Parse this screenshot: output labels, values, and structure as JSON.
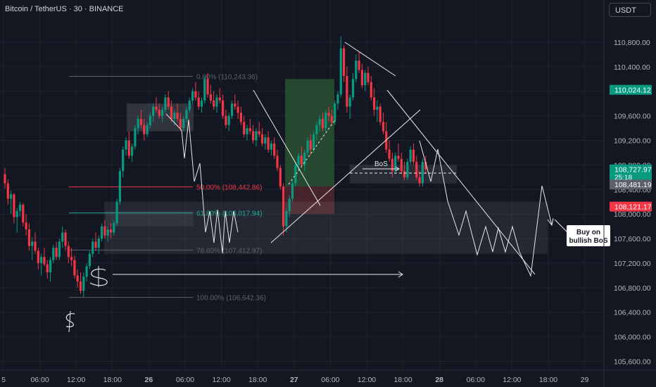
{
  "header": {
    "symbol": "Bitcoin / TetherUS · 30 · BINANCE",
    "currency": "USDT"
  },
  "colors": {
    "up": "#089981",
    "down": "#f23645",
    "bg": "#131722",
    "grid": "#1e222d",
    "axis_text": "#b2b5be",
    "fib": "#5d606b",
    "fib_red": "#f23645",
    "fib_teal": "#22ab94",
    "drawing": "#e8e8e8",
    "long_profit": "#2d5a35",
    "long_loss": "#5a2a30"
  },
  "chart_data": {
    "type": "candlestick",
    "title": "Bitcoin / TetherUS · 30 · BINANCE",
    "y_ticks": [
      "110,800.00",
      "110,400.00",
      "110,000.00",
      "109,600.00",
      "109,200.00",
      "108,800.00",
      "108,400.00",
      "108,000.00",
      "107,600.00",
      "107,200.00",
      "106,800.00",
      "106,400.00",
      "106,000.00",
      "105,600.00"
    ],
    "y_tick_values": [
      110800,
      110400,
      110000,
      109600,
      109200,
      108800,
      108400,
      108000,
      107600,
      107200,
      106800,
      106400,
      106000,
      105600
    ],
    "ylim": [
      105500,
      111300
    ],
    "x_ticks": [
      "5",
      "06:00",
      "12:00",
      "18:00",
      "26",
      "06:00",
      "12:00",
      "18:00",
      "27",
      "06:00",
      "12:00",
      "18:00",
      "28",
      "06:00",
      "12:00",
      "18:00",
      "29"
    ],
    "x_tick_hours": [
      0,
      6,
      12,
      18,
      24,
      30,
      36,
      42,
      48,
      54,
      60,
      66,
      72,
      78,
      84,
      90,
      96
    ],
    "bar_hours": 0.5,
    "ohlc": [
      [
        108650,
        108750,
        108420,
        108500
      ],
      [
        108500,
        108560,
        108150,
        108250
      ],
      [
        108250,
        108380,
        108000,
        108320
      ],
      [
        108320,
        108340,
        107850,
        107950
      ],
      [
        107950,
        108100,
        107700,
        108050
      ],
      [
        108050,
        108200,
        107960,
        108150
      ],
      [
        108150,
        108180,
        107800,
        107860
      ],
      [
        107860,
        108000,
        107650,
        107750
      ],
      [
        107750,
        107850,
        107400,
        107480
      ],
      [
        107480,
        107620,
        107250,
        107550
      ],
      [
        107550,
        107700,
        107350,
        107400
      ],
      [
        107400,
        107450,
        107100,
        107200
      ],
      [
        107200,
        107350,
        107000,
        107300
      ],
      [
        107300,
        107450,
        107150,
        107180
      ],
      [
        107180,
        107250,
        106950,
        107050
      ],
      [
        107050,
        107300,
        106900,
        107250
      ],
      [
        107250,
        107500,
        107200,
        107450
      ],
      [
        107450,
        107550,
        107250,
        107300
      ],
      [
        107300,
        107600,
        107250,
        107550
      ],
      [
        107550,
        107800,
        107450,
        107700
      ],
      [
        107700,
        107750,
        107400,
        107480
      ],
      [
        107480,
        107550,
        107200,
        107300
      ],
      [
        107300,
        107450,
        107150,
        107250
      ],
      [
        107250,
        107320,
        106950,
        107000
      ],
      [
        107000,
        107100,
        106800,
        106900
      ],
      [
        106900,
        107050,
        106700,
        106750
      ],
      [
        106750,
        107050,
        106650,
        106980
      ],
      [
        106980,
        107200,
        106900,
        107150
      ],
      [
        107150,
        107400,
        107100,
        107350
      ],
      [
        107350,
        107600,
        107300,
        107550
      ],
      [
        107550,
        107700,
        107400,
        107450
      ],
      [
        107450,
        107650,
        107350,
        107600
      ],
      [
        107600,
        107850,
        107550,
        107800
      ],
      [
        107800,
        107900,
        107600,
        107650
      ],
      [
        107650,
        107800,
        107550,
        107750
      ],
      [
        107750,
        107850,
        107600,
        107700
      ],
      [
        107700,
        107900,
        107650,
        107850
      ],
      [
        107850,
        108250,
        107800,
        108200
      ],
      [
        108200,
        108750,
        108150,
        108700
      ],
      [
        108700,
        109100,
        108600,
        109050
      ],
      [
        109050,
        109250,
        108950,
        109200
      ],
      [
        109200,
        109350,
        108900,
        108950
      ],
      [
        108950,
        109150,
        108850,
        109100
      ],
      [
        109100,
        109450,
        109050,
        109400
      ],
      [
        109400,
        109600,
        109300,
        109550
      ],
      [
        109550,
        109700,
        109400,
        109450
      ],
      [
        109450,
        109550,
        109200,
        109300
      ],
      [
        109300,
        109500,
        109250,
        109450
      ],
      [
        109450,
        109650,
        109400,
        109600
      ],
      [
        109600,
        109800,
        109500,
        109750
      ],
      [
        109750,
        109900,
        109650,
        109700
      ],
      [
        109700,
        109800,
        109550,
        109600
      ],
      [
        109600,
        109750,
        109500,
        109700
      ],
      [
        109700,
        109950,
        109650,
        109900
      ],
      [
        109900,
        110000,
        109700,
        109750
      ],
      [
        109750,
        109850,
        109500,
        109550
      ],
      [
        109550,
        109700,
        109450,
        109650
      ],
      [
        109650,
        109800,
        109500,
        109550
      ],
      [
        109550,
        109650,
        109350,
        109400
      ],
      [
        109400,
        109600,
        109350,
        109550
      ],
      [
        109550,
        109750,
        109500,
        109700
      ],
      [
        109700,
        109900,
        109650,
        109850
      ],
      [
        109850,
        110050,
        109800,
        110000
      ],
      [
        110000,
        110150,
        109850,
        109900
      ],
      [
        109900,
        110000,
        109700,
        109750
      ],
      [
        109750,
        109900,
        109650,
        109850
      ],
      [
        109850,
        110250,
        109800,
        110200
      ],
      [
        110200,
        110300,
        109900,
        109950
      ],
      [
        109950,
        110100,
        109800,
        109850
      ],
      [
        109850,
        110000,
        109700,
        109750
      ],
      [
        109750,
        109950,
        109650,
        109900
      ],
      [
        109900,
        110050,
        109800,
        109850
      ],
      [
        109850,
        109950,
        109550,
        109600
      ],
      [
        109600,
        109700,
        109400,
        109450
      ],
      [
        109450,
        109650,
        109350,
        109600
      ],
      [
        109600,
        109850,
        109550,
        109800
      ],
      [
        109800,
        109950,
        109700,
        109750
      ],
      [
        109750,
        109850,
        109550,
        109650
      ],
      [
        109650,
        109750,
        109450,
        109500
      ],
      [
        109500,
        109600,
        109250,
        109300
      ],
      [
        109300,
        109450,
        109200,
        109400
      ],
      [
        109400,
        109550,
        109300,
        109350
      ],
      [
        109350,
        109450,
        109150,
        109200
      ],
      [
        109200,
        109400,
        109100,
        109350
      ],
      [
        109350,
        109500,
        109250,
        109300
      ],
      [
        109300,
        109400,
        109100,
        109150
      ],
      [
        109150,
        109300,
        109050,
        109250
      ],
      [
        109250,
        109350,
        109000,
        109050
      ],
      [
        109050,
        109200,
        108950,
        109150
      ],
      [
        109150,
        109250,
        108900,
        108950
      ],
      [
        108950,
        109050,
        108700,
        108750
      ],
      [
        108750,
        108800,
        108400,
        108450
      ],
      [
        108450,
        108500,
        107650,
        107800
      ],
      [
        107800,
        108100,
        107700,
        108050
      ],
      [
        108050,
        108300,
        107950,
        108250
      ],
      [
        108250,
        108550,
        108200,
        108500
      ],
      [
        108500,
        108850,
        108450,
        108800
      ],
      [
        108800,
        109000,
        108700,
        108950
      ],
      [
        108950,
        109100,
        108750,
        108800
      ],
      [
        108800,
        109050,
        108700,
        109000
      ],
      [
        109000,
        109250,
        108950,
        109200
      ],
      [
        109200,
        109300,
        108950,
        109050
      ],
      [
        109050,
        109350,
        109000,
        109300
      ],
      [
        109300,
        109500,
        109200,
        109450
      ],
      [
        109450,
        109600,
        109350,
        109550
      ],
      [
        109550,
        109650,
        109350,
        109400
      ],
      [
        109400,
        109700,
        109350,
        109650
      ],
      [
        109650,
        109750,
        109500,
        109600
      ],
      [
        109600,
        109700,
        109450,
        109500
      ],
      [
        109500,
        109850,
        109450,
        109800
      ],
      [
        109800,
        110000,
        109700,
        109950
      ],
      [
        109950,
        110900,
        109900,
        110700
      ],
      [
        110700,
        110750,
        110150,
        110250
      ],
      [
        110250,
        110400,
        109650,
        109750
      ],
      [
        109750,
        109950,
        109550,
        109900
      ],
      [
        109900,
        110300,
        109850,
        110200
      ],
      [
        110200,
        110600,
        110150,
        110500
      ],
      [
        110500,
        110650,
        110300,
        110350
      ],
      [
        110350,
        110450,
        110050,
        110100
      ],
      [
        110100,
        110350,
        110000,
        110300
      ],
      [
        110300,
        110400,
        110100,
        110150
      ],
      [
        110150,
        110250,
        109850,
        109900
      ],
      [
        109900,
        110050,
        109600,
        109700
      ],
      [
        109700,
        109850,
        109500,
        109750
      ],
      [
        109750,
        109800,
        109450,
        109500
      ],
      [
        109500,
        109650,
        109300,
        109350
      ],
      [
        109350,
        109500,
        109000,
        109050
      ],
      [
        109050,
        109200,
        108850,
        108900
      ],
      [
        108900,
        109000,
        108600,
        108700
      ],
      [
        108700,
        109000,
        108650,
        108950
      ],
      [
        108950,
        109150,
        108850,
        108900
      ],
      [
        108900,
        109000,
        108650,
        108700
      ],
      [
        108700,
        108850,
        108550,
        108600
      ],
      [
        108600,
        108900,
        108550,
        108850
      ],
      [
        108850,
        109100,
        108800,
        109050
      ],
      [
        109050,
        109150,
        108800,
        108850
      ],
      [
        108850,
        108950,
        108550,
        108600
      ],
      [
        108600,
        108700,
        108450,
        108500
      ],
      [
        108500,
        108900,
        108450,
        108850
      ],
      [
        108850,
        108950,
        108650,
        108728
      ]
    ],
    "fib_levels": [
      {
        "label": "0.00% (110,243.36)",
        "price": 110243.36
      },
      {
        "label": "50.00% (108,442.86)",
        "price": 108442.86
      },
      {
        "label": "61.80% (108,017.94)",
        "price": 108017.94
      },
      {
        "label": "78.60% (107,412.97)",
        "price": 107412.97
      },
      {
        "label": "100.00% (106,642.36)",
        "price": 106642.36
      }
    ],
    "price_tags": [
      {
        "label": "110,024.12",
        "price": 110024.12,
        "color": "#089981"
      },
      {
        "label": "108,727.97",
        "sub": "25:18",
        "price": 108727.97,
        "color": "#089981"
      },
      {
        "label": "108,481.19",
        "price": 108481.19,
        "color": "#5d606b"
      },
      {
        "label": "108,121.17",
        "price": 108121.17,
        "color": "#f23645"
      }
    ],
    "annotations": [
      "BoS",
      "Buy on\nbullish BoS",
      "$",
      "$"
    ]
  }
}
